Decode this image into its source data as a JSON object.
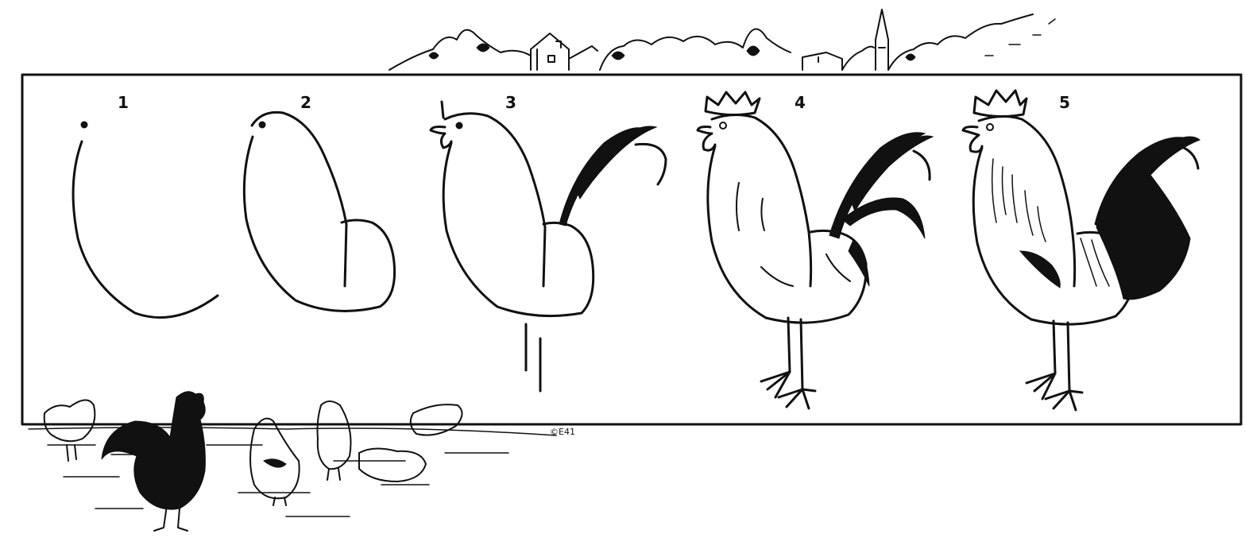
{
  "steps": [
    {
      "number": "1"
    },
    {
      "number": "2"
    },
    {
      "number": "3"
    },
    {
      "number": "4"
    },
    {
      "number": "5"
    }
  ],
  "copyright_mark": "©E41",
  "colors": {
    "ink": "#111111",
    "paper": "#ffffff"
  },
  "illustration": {
    "subject_icon": "rooster-icon",
    "background_icons": [
      "village-skyline-icon",
      "farmyard-chickens-icon"
    ]
  }
}
